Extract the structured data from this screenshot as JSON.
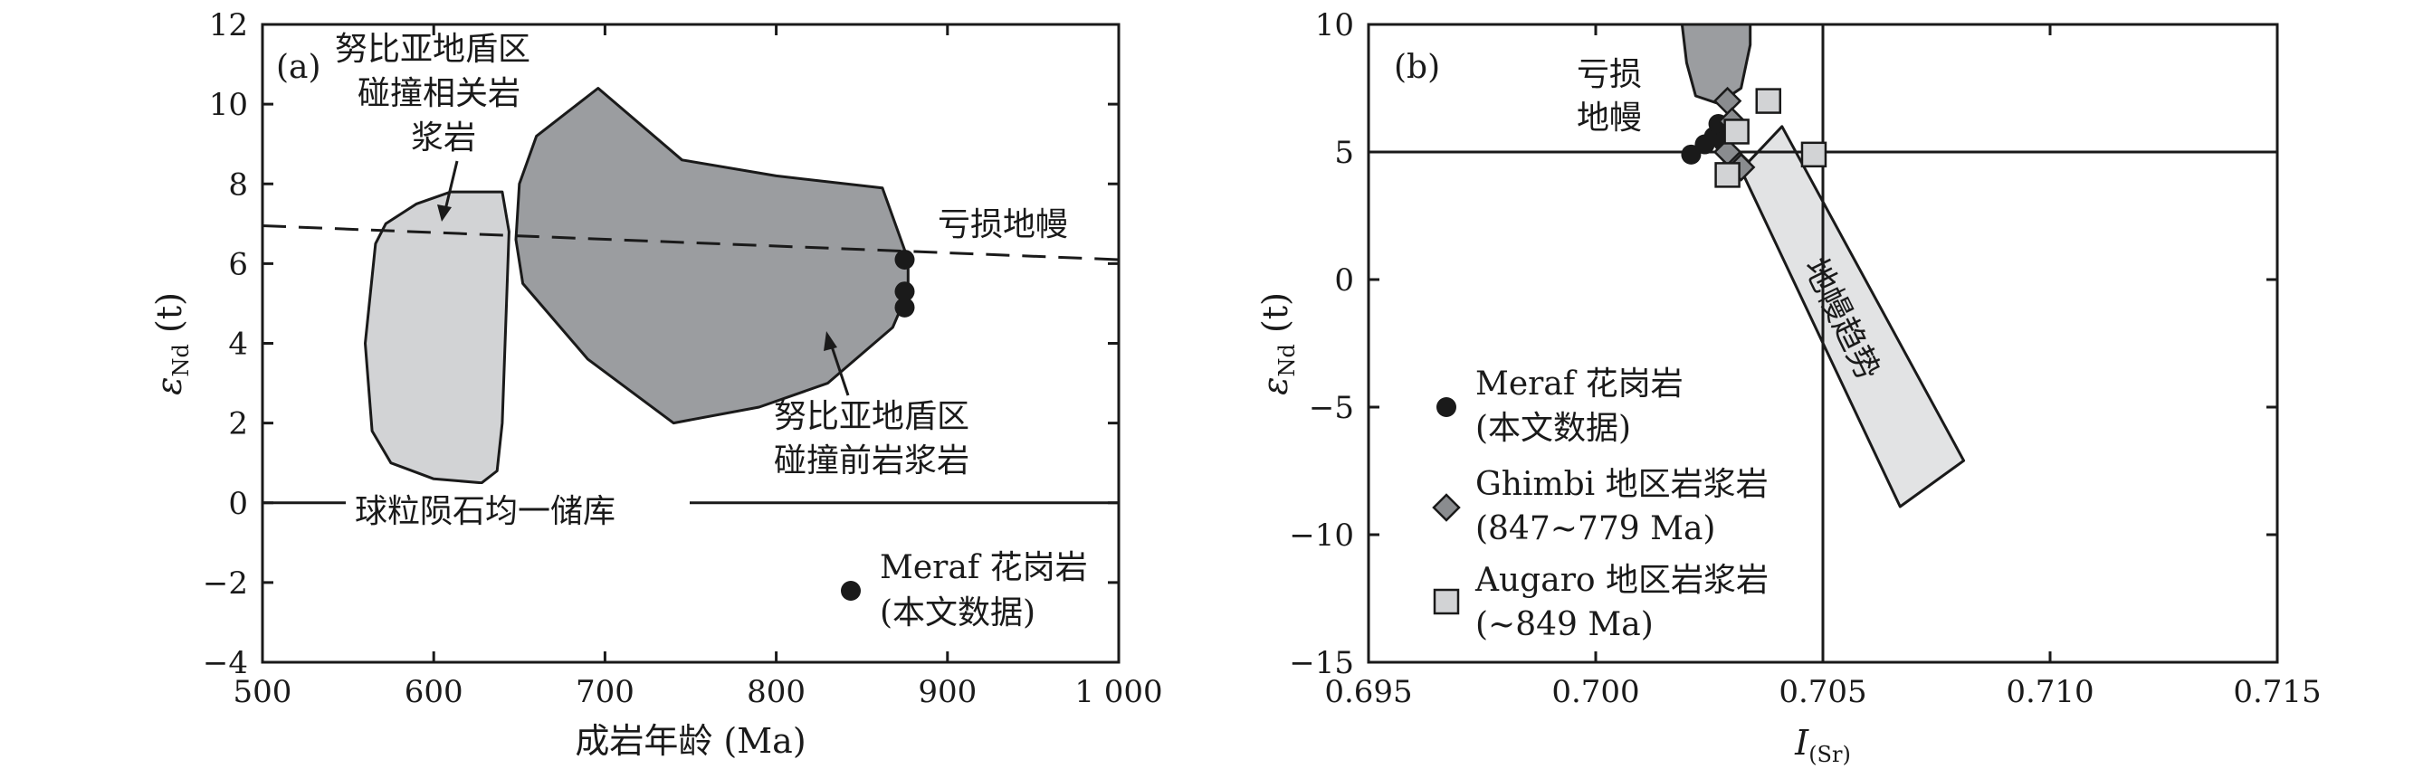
{
  "chart_data": [
    {
      "type": "scatter",
      "panel_label": "(a)",
      "xlabel": "成岩年龄 (Ma)",
      "ylabel": "εNd (t)",
      "ylabel_main": "ε",
      "ylabel_sub": "Nd",
      "ylabel_tail": " (t)",
      "xlim": [
        500,
        1000
      ],
      "ylim": [
        -4,
        12
      ],
      "xticks": [
        500,
        600,
        700,
        800,
        900,
        1000
      ],
      "xtick_labels": [
        "500",
        "600",
        "700",
        "800",
        "900",
        "1 000"
      ],
      "yticks": [
        -4,
        -2,
        0,
        2,
        4,
        6,
        8,
        10,
        12
      ],
      "ytick_labels": [
        "−4",
        "−2",
        "0",
        "2",
        "4",
        "6",
        "8",
        "10",
        "12"
      ],
      "series": [
        {
          "name": "Meraf 花岗岩 (本文数据)",
          "marker": "circle",
          "color": "#1a1a1a",
          "points": [
            [
              875,
              6.1
            ],
            [
              875,
              5.3
            ],
            [
              875,
              4.9
            ]
          ]
        }
      ],
      "regions": [
        {
          "label": "努比亚地盾区碰撞相关岩浆岩",
          "color": "#d2d3d5",
          "polygon": [
            [
              566,
              6.5
            ],
            [
              572,
              7.0
            ],
            [
              590,
              7.5
            ],
            [
              610,
              7.8
            ],
            [
              640,
              7.8
            ],
            [
              644,
              6.8
            ],
            [
              640,
              2.0
            ],
            [
              637,
              0.8
            ],
            [
              628,
              0.5
            ],
            [
              600,
              0.6
            ],
            [
              575,
              1.0
            ],
            [
              564,
              1.8
            ],
            [
              560,
              4.0
            ]
          ]
        },
        {
          "label": "努比亚地盾区碰撞前岩浆岩",
          "color": "#9b9da0",
          "polygon": [
            [
              650,
              8.0
            ],
            [
              660,
              9.2
            ],
            [
              696,
              10.4
            ],
            [
              745,
              8.6
            ],
            [
              800,
              8.2
            ],
            [
              862,
              7.9
            ],
            [
              877,
              6.1
            ],
            [
              877,
              5.3
            ],
            [
              868,
              4.4
            ],
            [
              830,
              3.0
            ],
            [
              790,
              2.4
            ],
            [
              740,
              2.0
            ],
            [
              690,
              3.6
            ],
            [
              652,
              5.5
            ],
            [
              648,
              6.6
            ]
          ]
        }
      ],
      "lines": [
        {
          "label": "亏损地幔",
          "style": "dashed",
          "points": [
            [
              500,
              6.95
            ],
            [
              1000,
              6.1
            ]
          ]
        },
        {
          "label": "球粒陨石均一储库",
          "style": "solid",
          "points": [
            [
              500,
              0
            ],
            [
              1000,
              0
            ]
          ]
        }
      ],
      "annotations": [
        {
          "text_lines": [
            "努比亚地盾区",
            "碰撞相关岩",
            "浆岩"
          ],
          "arrow_to": [
            612,
            7.3
          ]
        },
        {
          "text_lines": [
            "努比亚地盾区",
            "碰撞前岩浆岩"
          ],
          "arrow_to": [
            777,
            4.0
          ]
        },
        {
          "text_lines": [
            "亏损地幔"
          ]
        },
        {
          "text_lines": [
            "球粒陨石均一储库"
          ]
        }
      ],
      "legend": [
        {
          "marker": "circle",
          "text_lines": [
            "Meraf 花岗岩",
            "(本文数据)"
          ]
        }
      ]
    },
    {
      "type": "scatter",
      "panel_label": "(b)",
      "xlabel": "I(Sr)",
      "xlabel_main": "I",
      "xlabel_sub": "(Sr)",
      "ylabel": "εNd (t)",
      "ylabel_main": "ε",
      "ylabel_sub": "Nd",
      "ylabel_tail": " (t)",
      "xlim": [
        0.695,
        0.715
      ],
      "ylim": [
        -15,
        10
      ],
      "xticks": [
        0.695,
        0.7,
        0.705,
        0.71,
        0.715
      ],
      "xtick_labels": [
        "0.695",
        "0.700",
        "0.705",
        "0.710",
        "0.715"
      ],
      "yticks": [
        -15,
        -10,
        -5,
        0,
        5,
        10
      ],
      "ytick_labels": [
        "−15",
        "−10",
        "−5",
        "0",
        "5",
        "10"
      ],
      "reference_lines": {
        "x": 0.705,
        "y": 5
      },
      "series": [
        {
          "name": "Meraf 花岗岩 (本文数据)",
          "marker": "circle",
          "color": "#1a1a1a",
          "points": [
            [
              0.7021,
              4.9
            ],
            [
              0.7024,
              5.3
            ],
            [
              0.7026,
              5.6
            ],
            [
              0.7027,
              6.1
            ],
            [
              0.7028,
              5.4
            ]
          ]
        },
        {
          "name": "Ghimbi 地区岩浆岩 (847~779 Ma)",
          "marker": "diamond",
          "color": "#8a8c8f",
          "points": [
            [
              0.7029,
              7.0
            ],
            [
              0.703,
              6.2
            ],
            [
              0.7031,
              4.6
            ],
            [
              0.7032,
              4.4
            ],
            [
              0.7029,
              5.0
            ]
          ]
        },
        {
          "name": "Augaro 地区岩浆岩 (~849 Ma)",
          "marker": "square",
          "color": "#d2d3d5",
          "points": [
            [
              0.7029,
              4.1
            ],
            [
              0.7031,
              5.8
            ],
            [
              0.7038,
              7.0
            ],
            [
              0.7048,
              4.9
            ]
          ]
        }
      ],
      "regions": [
        {
          "label": "亏损地幔",
          "color": "#9b9da0",
          "polygon": [
            [
              0.7019,
              10.0
            ],
            [
              0.7034,
              10.0
            ],
            [
              0.7034,
              9.2
            ],
            [
              0.7032,
              7.5
            ],
            [
              0.7027,
              6.9
            ],
            [
              0.7022,
              7.2
            ],
            [
              0.702,
              8.5
            ]
          ]
        },
        {
          "label": "地幔趋势",
          "color": "#e2e3e4",
          "polygon": [
            [
              0.7041,
              6.0
            ],
            [
              0.7032,
              4.3
            ],
            [
              0.7067,
              -8.9
            ],
            [
              0.7081,
              -7.1
            ]
          ]
        }
      ],
      "annotations": [
        {
          "text_lines": [
            "亏损",
            "地幔"
          ]
        },
        {
          "text_lines": [
            "地幔趋势"
          ],
          "rotation": 64
        }
      ],
      "legend": [
        {
          "marker": "circle",
          "text_lines": [
            "Meraf 花岗岩",
            "(本文数据)"
          ]
        },
        {
          "marker": "diamond",
          "text_lines": [
            "Ghimbi 地区岩浆岩",
            "(847~779 Ma)"
          ]
        },
        {
          "marker": "square",
          "text_lines": [
            "Augaro 地区岩浆岩",
            "(~849 Ma)"
          ]
        }
      ]
    }
  ]
}
